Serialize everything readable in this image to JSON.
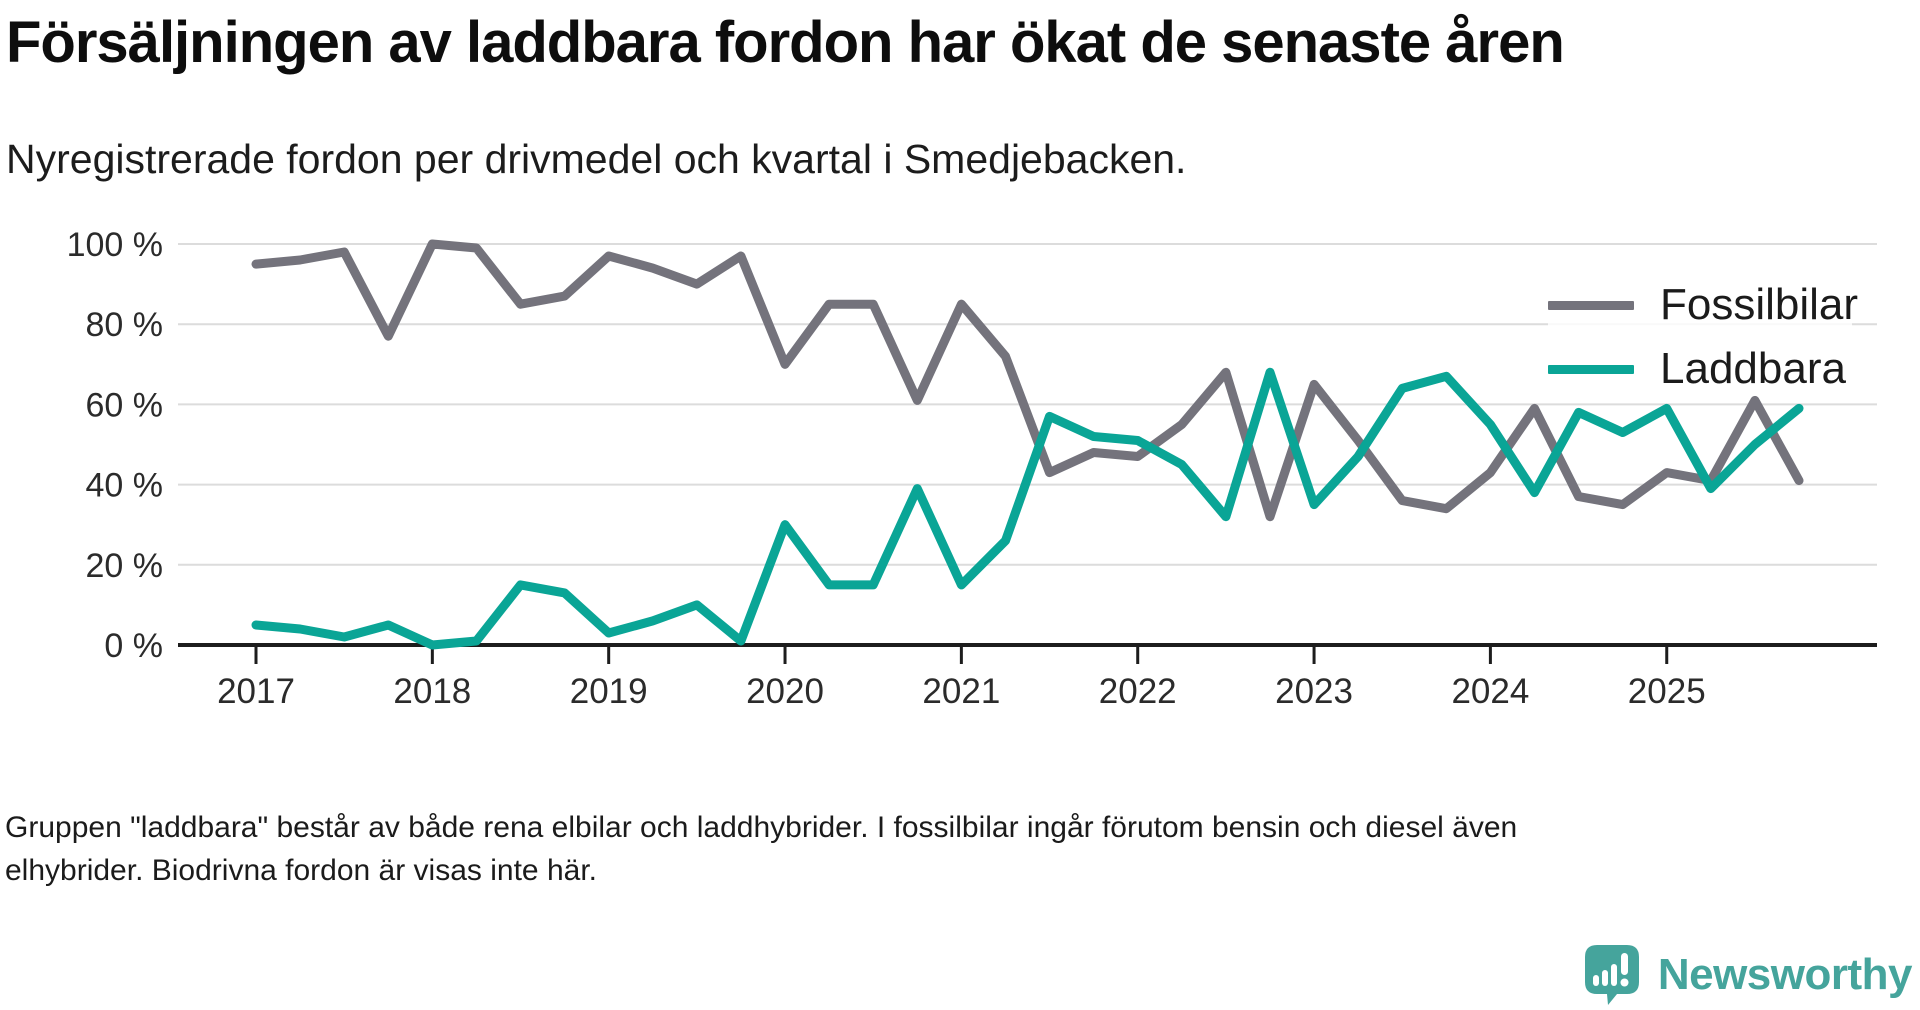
{
  "title": "Försäljningen av laddbara fordon har ökat de senaste åren",
  "subtitle": "Nyregistrerade fordon per drivmedel och kvartal i Smedjebacken.",
  "footer": {
    "line1": "Gruppen \"laddbara\" består av både rena elbilar och laddhybrider. I fossilbilar ingår förutom bensin och diesel även",
    "line2": "elhybrider. Biodrivna fordon är visas inte här."
  },
  "legend": {
    "items": [
      {
        "label": "Fossilbilar",
        "color": "#74737c"
      },
      {
        "label": "Laddbara",
        "color": "#0aa596"
      }
    ]
  },
  "logo": {
    "text": "Newsworthy",
    "color": "#45a49c"
  },
  "colors": {
    "fossil_line": "#74737c",
    "laddbara_line": "#0aa596",
    "gridline": "#dcdcdc",
    "axis": "#1d1d1d",
    "tick_label": "#2b2b2b"
  },
  "chart_data": {
    "type": "line",
    "title": "Försäljningen av laddbara fordon har ökat de senaste åren",
    "subtitle": "Nyregistrerade fordon per drivmedel och kvartal i Smedjebacken.",
    "xlabel": "",
    "ylabel": "",
    "ylim": [
      0,
      100
    ],
    "yticks": [
      0,
      20,
      40,
      60,
      80,
      100
    ],
    "ytick_labels": [
      "0 %",
      "20 %",
      "40 %",
      "60 %",
      "80 %",
      "100 %"
    ],
    "x_tick_labels": [
      "2017",
      "2018",
      "2019",
      "2020",
      "2021",
      "2022",
      "2023",
      "2024",
      "2025"
    ],
    "grid": "horizontal",
    "legend_position": "top-right",
    "categories": [
      "2017 Q1",
      "2017 Q2",
      "2017 Q3",
      "2017 Q4",
      "2018 Q1",
      "2018 Q2",
      "2018 Q3",
      "2018 Q4",
      "2019 Q1",
      "2019 Q2",
      "2019 Q3",
      "2019 Q4",
      "2020 Q1",
      "2020 Q2",
      "2020 Q3",
      "2020 Q4",
      "2021 Q1",
      "2021 Q2",
      "2021 Q3",
      "2021 Q4",
      "2022 Q1",
      "2022 Q2",
      "2022 Q3",
      "2022 Q4",
      "2023 Q1",
      "2023 Q2",
      "2023 Q3",
      "2023 Q4",
      "2024 Q1",
      "2024 Q2",
      "2024 Q3",
      "2024 Q4",
      "2025 Q1",
      "2025 Q2",
      "2025 Q3",
      "2025 Q4"
    ],
    "series": [
      {
        "name": "Fossilbilar",
        "color": "#74737c",
        "values": [
          95,
          96,
          98,
          77,
          100,
          99,
          85,
          87,
          97,
          94,
          90,
          97,
          70,
          85,
          85,
          61,
          85,
          72,
          43,
          48,
          47,
          55,
          68,
          32,
          65,
          51,
          36,
          34,
          43,
          59,
          37,
          35,
          43,
          41,
          61,
          41
        ]
      },
      {
        "name": "Laddbara",
        "color": "#0aa596",
        "values": [
          5,
          4,
          2,
          5,
          0,
          1,
          15,
          13,
          3,
          6,
          10,
          1,
          30,
          15,
          15,
          39,
          15,
          26,
          57,
          52,
          51,
          45,
          32,
          68,
          35,
          47,
          64,
          67,
          55,
          38,
          58,
          53,
          59,
          39,
          50,
          59
        ]
      }
    ]
  }
}
